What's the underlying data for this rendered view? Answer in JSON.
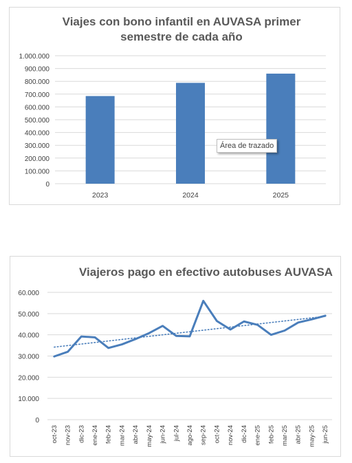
{
  "chart_data": [
    {
      "type": "bar",
      "title": "Viajes con bono infantil en AUVASA primer semestre de cada año",
      "title_lines": [
        "Viajes con bono infantil en AUVASA primer",
        "semestre de cada año"
      ],
      "categories": [
        "2023",
        "2024",
        "2025"
      ],
      "values": [
        685000,
        788000,
        860000
      ],
      "ylim": [
        0,
        1000000
      ],
      "yticks": [
        0,
        100000,
        200000,
        300000,
        400000,
        500000,
        600000,
        700000,
        800000,
        900000,
        1000000
      ],
      "ytick_labels": [
        "0",
        "100.000",
        "200.000",
        "300.000",
        "400.000",
        "500.000",
        "600.000",
        "700.000",
        "800.000",
        "900.000",
        "1.000.000"
      ],
      "grid": true,
      "bar_color": "#4a7ebb",
      "tooltip": "Área de trazado"
    },
    {
      "type": "line",
      "title": "Viajeros pago en efectivo autobuses AUVASA",
      "categories": [
        "oct-23",
        "nov-23",
        "dic-23",
        "ene-24",
        "feb-24",
        "mar-24",
        "abr-24",
        "may-24",
        "jun-24",
        "jul-24",
        "ago-24",
        "sep-24",
        "oct-24",
        "nov-24",
        "dic-24",
        "ene-25",
        "feb-25",
        "mar-25",
        "abr-25",
        "may-25",
        "jun-25"
      ],
      "series": [
        {
          "values": [
            29800,
            32000,
            39200,
            38800,
            33800,
            35500,
            38000,
            40800,
            44200,
            39500,
            39300,
            56000,
            46500,
            42500,
            46300,
            44700,
            40000,
            42000,
            45800,
            47300,
            49000
          ]
        }
      ],
      "trendline": {
        "style": "dotted",
        "start": 34200,
        "end": 48700
      },
      "ylim": [
        0,
        60000
      ],
      "yticks": [
        0,
        10000,
        20000,
        30000,
        40000,
        50000,
        60000
      ],
      "ytick_labels": [
        "0",
        "10.000",
        "20.000",
        "30.000",
        "40.000",
        "50.000",
        "60.000"
      ],
      "grid": true,
      "line_color": "#4a7ebb"
    }
  ]
}
